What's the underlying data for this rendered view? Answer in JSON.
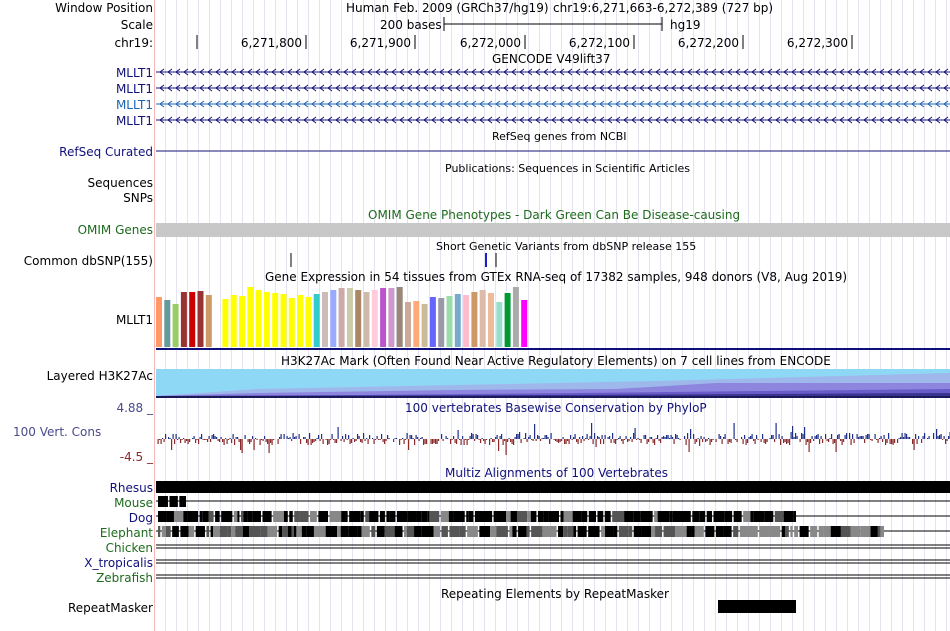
{
  "browser": {
    "assembly": "Human Feb. 2009 (GRCh37/hg19)",
    "position": "chr19:6,271,663-6,272,389 (727 bp)",
    "scale_bases": "200 bases",
    "scale_db": "hg19"
  },
  "labels": {
    "window_position": "Window Position",
    "scale": "Scale",
    "chrom": "chr19:",
    "gencode_title": "GENCODE V49lift37",
    "gencode_transcripts": [
      "MLLT1",
      "MLLT1",
      "MLLT1",
      "MLLT1"
    ],
    "refseq_title": "RefSeq genes from NCBI",
    "refseq_label": "RefSeq Curated",
    "pubs_title": "Publications: Sequences in Scientific Articles",
    "sequences": "Sequences",
    "snps": "SNPs",
    "omim_title": "OMIM Gene Phenotypes - Dark Green Can Be Disease-causing",
    "omim_label": "OMIM Genes",
    "dbsnp_title": "Short Genetic Variants from dbSNP release 155",
    "dbsnp_label": "Common dbSNP(155)",
    "gtex_title": "Gene Expression in 54 tissues from GTEx RNA-seq of 17382 samples, 948 donors (V8, Aug 2019)",
    "gtex_label": "MLLT1",
    "h3k27_title": "H3K27Ac Mark (Often Found Near Active Regulatory Elements) on 7 cell lines from ENCODE",
    "h3k27_label": "Layered H3K27Ac",
    "cons_title": "100 vertebrates Basewise Conservation by PhyloP",
    "cons_label": "100 Vert. Cons",
    "cons_max": "4.88 _",
    "cons_min": "-4.5 _",
    "multiz_title": "Multiz Alignments of 100 Vertebrates",
    "species": [
      "Rhesus",
      "Mouse",
      "Dog",
      "Elephant",
      "Chicken",
      "X_tropicalis",
      "Zebrafish"
    ],
    "rmsk_title": "Repeating Elements by RepeatMasker",
    "rmsk_label": "RepeatMasker"
  },
  "ruler": {
    "ticks": [
      "6,271,800",
      "6,271,900",
      "6,272,000",
      "6,272,100",
      "6,272,200",
      "6,272,300"
    ]
  },
  "colors": {
    "navy": "#10107a",
    "gencode_blue": "#1a64b4",
    "green": "#1d6a1d",
    "cons_label": "#4a4a8a",
    "cons_pos": "#1f2f8a",
    "cons_neg": "#8a2a2a",
    "omim_bar": "#c8c8c8",
    "gtex_bars": [
      "#ff9966",
      "#669999",
      "#99cc66",
      "#993333",
      "#cc0000",
      "#993333",
      "#cc9966",
      "#ffffff",
      "#ffff00",
      "#ffff00",
      "#ffff00",
      "#ffff00",
      "#ffff00",
      "#ffff00",
      "#ffff00",
      "#ffff00",
      "#ffff00",
      "#ffff00",
      "#ffff00",
      "#33cccc",
      "#ccbbbb",
      "#99aaff",
      "#ccaaaa",
      "#ccccaa",
      "#aa8866",
      "#ccbbaa",
      "#ffccdd",
      "#bb55cc",
      "#cc99cc",
      "#998877",
      "#ccaa99",
      "#ffaa77",
      "#ccbb99",
      "#6666ff",
      "#9999aa",
      "#99ddaa",
      "#77aacc",
      "#ffbbcc",
      "#cc9966",
      "#ddbbaa",
      "#eebb99",
      "#99ddcc",
      "#009933",
      "#aaaaaa",
      "#ff00ff"
    ]
  },
  "chart_data": {
    "type": "bar",
    "title": "Gene Expression in 54 tissues from GTEx RNA-seq of 17382 samples, 948 donors (V8, Aug 2019)",
    "gene": "MLLT1",
    "values": [
      50,
      47,
      43,
      55,
      55,
      56,
      52,
      32,
      48,
      52,
      51,
      60,
      57,
      55,
      54,
      53,
      49,
      52,
      50,
      53,
      55,
      57,
      59,
      59,
      57,
      55,
      57,
      59,
      59,
      60,
      45,
      46,
      43,
      50,
      49,
      51,
      53,
      52,
      55,
      57,
      54,
      45,
      54,
      60,
      47
    ]
  }
}
